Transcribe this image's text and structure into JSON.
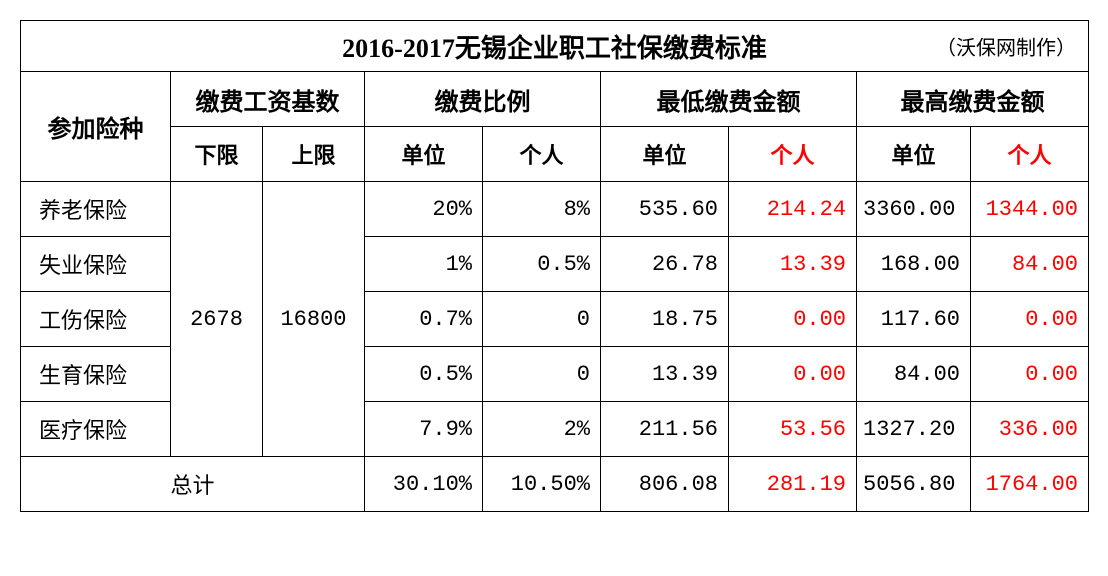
{
  "title": "2016-2017无锡企业职工社保缴费标准",
  "title_note": "（沃保网制作）",
  "headers": {
    "col1": "参加险种",
    "group_base": "缴费工资基数",
    "group_ratio": "缴费比例",
    "group_min": "最低缴费金额",
    "group_max": "最高缴费金额",
    "base_lower": "下限",
    "base_upper": "上限",
    "unit": "单位",
    "person": "个人"
  },
  "base": {
    "lower": "2678",
    "upper": "16800"
  },
  "rows": [
    {
      "label": "养老保险",
      "ratio_unit": "20%",
      "ratio_person": "8%",
      "min_unit": "535.60",
      "min_person": "214.24",
      "max_unit": "3360.00",
      "max_person": "1344.00"
    },
    {
      "label": "失业保险",
      "ratio_unit": "1%",
      "ratio_person": "0.5%",
      "min_unit": "26.78",
      "min_person": "13.39",
      "max_unit": "168.00",
      "max_person": "84.00"
    },
    {
      "label": "工伤保险",
      "ratio_unit": "0.7%",
      "ratio_person": "0",
      "min_unit": "18.75",
      "min_person": "0.00",
      "max_unit": "117.60",
      "max_person": "0.00"
    },
    {
      "label": "生育保险",
      "ratio_unit": "0.5%",
      "ratio_person": "0",
      "min_unit": "13.39",
      "min_person": "0.00",
      "max_unit": "84.00",
      "max_person": "0.00"
    },
    {
      "label": "医疗保险",
      "ratio_unit": "7.9%",
      "ratio_person": "2%",
      "min_unit": "211.56",
      "min_person": "53.56",
      "max_unit": "1327.20",
      "max_person": "336.00"
    }
  ],
  "total": {
    "label": "总计",
    "ratio_unit": "30.10%",
    "ratio_person": "10.50%",
    "min_unit": "806.08",
    "min_person": "281.19",
    "max_unit": "5056.80",
    "max_person": "1764.00"
  },
  "colors": {
    "text": "#000000",
    "highlight": "#ff0000",
    "border": "#000000",
    "background": "#ffffff"
  },
  "fonts": {
    "body_family": "SimSun",
    "number_family": "Courier New",
    "title_size": 26,
    "header_size": 24,
    "cell_size": 22
  }
}
